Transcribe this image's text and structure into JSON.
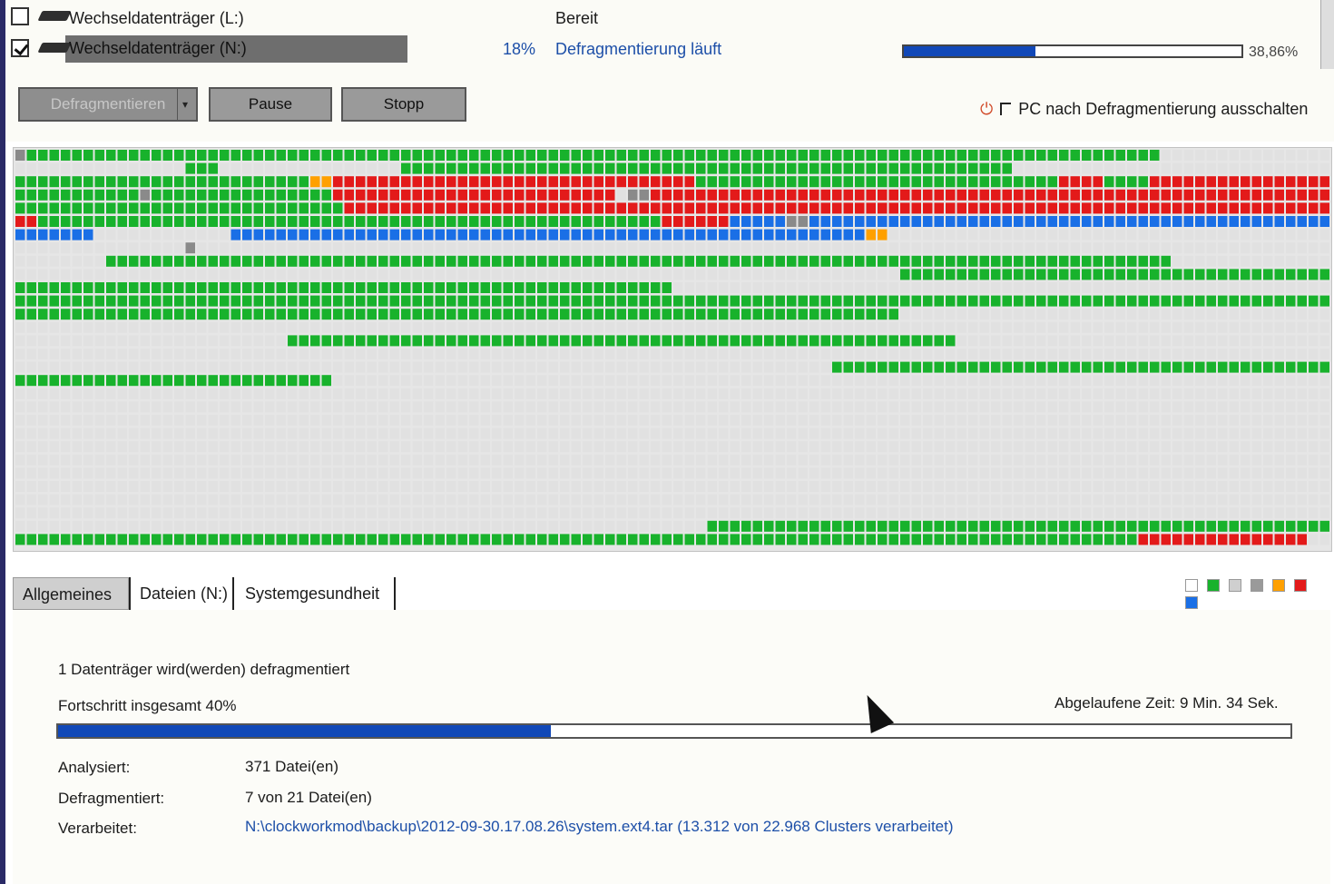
{
  "drives": [
    {
      "name": "Wechseldatenträger (L:)",
      "checked": false,
      "status": "Bereit",
      "percent": "",
      "progress_text": ""
    },
    {
      "name": "Wechseldatenträger (N:)",
      "checked": true,
      "status": "Defragmentierung läuft",
      "percent": "18%",
      "progress": 0.39,
      "progress_text": "38,86%"
    }
  ],
  "toolbar": {
    "defrag_label": "Defragmentieren",
    "pause_label": "Pause",
    "stop_label": "Stopp",
    "shutdown_label": "PC nach Defragmentierung ausschalten"
  },
  "colors": {
    "free": "#e1e1e1",
    "used": "#18b22c",
    "fragmented": "#e31a1a",
    "processing": "#1a6fe6",
    "system": "#8a8a8a",
    "mft": "#ffa000"
  },
  "tabs": [
    "Allgemeines",
    "Dateien (N:)",
    "Systemgesundheit"
  ],
  "general": {
    "summary": "1 Datenträger wird(werden) defragmentiert",
    "progress_label": "Fortschritt insgesamt 40%",
    "progress": 0.4,
    "elapsed_label": "Abgelaufene Zeit: 9 Min. 34 Sek.",
    "rows": [
      {
        "label": "Analysiert:",
        "value": "371 Datei(en)"
      },
      {
        "label": "Defragmentiert:",
        "value": "7 von 21 Datei(en)"
      },
      {
        "label": "Verarbeitet:",
        "value": "N:\\clockworkmod\\backup\\2012-09-30.17.08.26\\system.ext4.tar (13.312 von 22.968 Clusters verarbeitet)"
      }
    ]
  }
}
